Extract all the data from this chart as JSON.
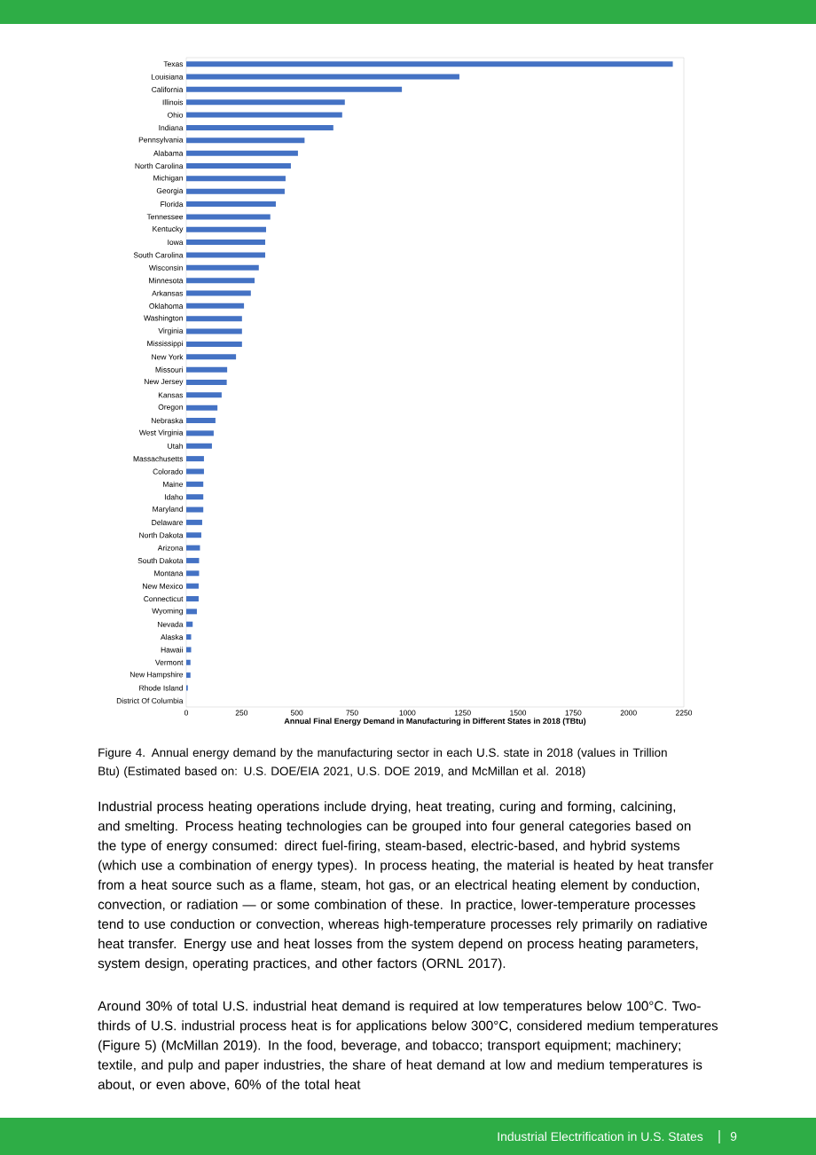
{
  "chart_data": {
    "type": "bar",
    "orientation": "horizontal",
    "color": "#4472c4",
    "xlabel": "Annual Final Energy Demand in Manufacturing in Different States in 2018 (TBtu)",
    "categories": [
      "Texas",
      "Louisiana",
      "California",
      "Illinois",
      "Ohio",
      "Indiana",
      "Pennsylvania",
      "Alabama",
      "North Carolina",
      "Michigan",
      "Georgia",
      "Florida",
      "Tennessee",
      "Kentucky",
      "Iowa",
      "South Carolina",
      "Wisconsin",
      "Minnesota",
      "Arkansas",
      "Oklahoma",
      "Washington",
      "Virginia",
      "Mississippi",
      "New York",
      "Missouri",
      "New Jersey",
      "Kansas",
      "Oregon",
      "Nebraska",
      "West Virginia",
      "Utah",
      "Massachusetts",
      "Colorado",
      "Maine",
      "Idaho",
      "Maryland",
      "Delaware",
      "North Dakota",
      "Arizona",
      "South Dakota",
      "Montana",
      "New Mexico",
      "Connecticut",
      "Wyoming",
      "Nevada",
      "Alaska",
      "Hawaii",
      "Vermont",
      "New Hampshire",
      "Rhode Island",
      "District Of Columbia"
    ],
    "values": [
      2200,
      1235,
      975,
      717,
      705,
      665,
      535,
      505,
      473,
      449,
      445,
      405,
      380,
      361,
      357,
      357,
      328,
      309,
      292,
      261,
      252,
      252,
      252,
      225,
      185,
      183,
      160,
      141,
      132,
      124,
      116,
      80,
      80,
      77,
      77,
      77,
      72,
      68,
      62,
      58,
      58,
      56,
      56,
      48,
      29,
      22,
      22,
      19,
      19,
      7,
      0
    ],
    "xlim": [
      0,
      2250
    ],
    "xticks": [
      0,
      250,
      500,
      750,
      1000,
      1250,
      1500,
      1750,
      2000,
      2250
    ],
    "annotations": [
      "Figure 4. Annual energy demand by the manufacturing sector in each U.S. state in 2018 (values in Trillion Btu) (Estimated based on: U.S. DOE/EIA 2021, U.S. DOE 2019, and McMillan et al. 2018)",
      "Industrial process heating operations include drying, heat treating, curing and forming, calcining, and smelting. Process heating technologies can be grouped into four general categories based on the type of energy consumed: direct fuel-firing, steam-based, electric-based, and hybrid systems (which use a combination of energy types). In process heating, the material is heated by heat transfer from a heat source such as a flame, steam, hot gas, or an electrical heating element by conduction, convection, or radiation — or some combination of these. In practice, lower-temperature processes tend to use conduction or convection, whereas high-temperature processes rely primarily on radiative heat transfer. Energy use and heat losses from the system depend on process heating parameters, system design, operating practices, and other factors (ORNL 2017).",
      "Around 30% of total U.S. industrial heat demand is required at low temperatures below 100°C. Two-thirds of U.S. industrial process heat is for applications below 300°C, considered medium temperatures (Figure 5) (McMillan 2019). In the food, beverage, and tobacco; transport equipment; machinery; textile, and pulp and paper industries, the share of heat demand at low and medium temperatures is about, or even above, 60% of the total heat",
      "Industrial Electrification in U.S. States",
      "9"
    ]
  }
}
